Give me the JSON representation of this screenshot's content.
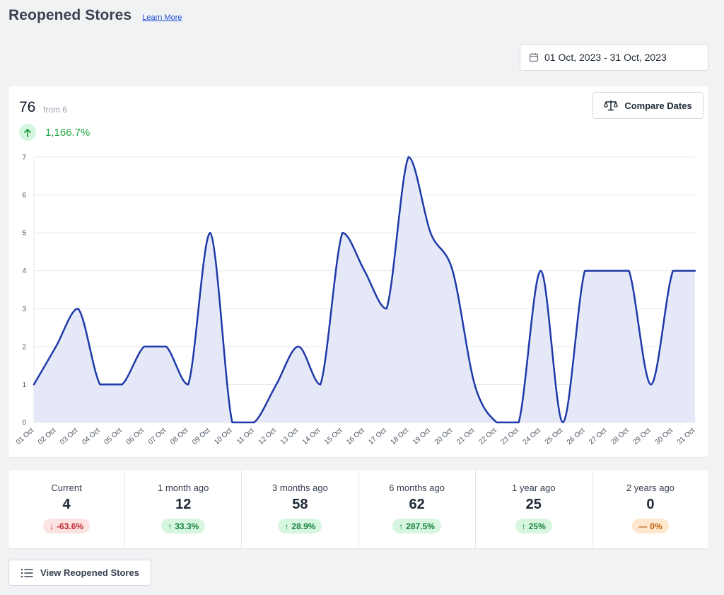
{
  "header": {
    "title": "Reopened Stores",
    "learn_more": "Learn More"
  },
  "date_range": {
    "label": "01 Oct, 2023 - 31 Oct, 2023",
    "icon": "calendar-icon"
  },
  "stats": {
    "value": "76",
    "from": "from 6",
    "change": "1,166.7%",
    "change_icon": "arrow-up-icon"
  },
  "compare_button": {
    "label": "Compare Dates",
    "icon": "scale-icon"
  },
  "chart_data": {
    "type": "area",
    "title": "",
    "xlabel": "",
    "ylabel": "",
    "categories": [
      "01 Oct",
      "02 Oct",
      "03 Oct",
      "04 Oct",
      "05 Oct",
      "06 Oct",
      "07 Oct",
      "08 Oct",
      "09 Oct",
      "10 Oct",
      "11 Oct",
      "12 Oct",
      "13 Oct",
      "14 Oct",
      "15 Oct",
      "16 Oct",
      "17 Oct",
      "18 Oct",
      "19 Oct",
      "20 Oct",
      "21 Oct",
      "22 Oct",
      "23 Oct",
      "24 Oct",
      "25 Oct",
      "26 Oct",
      "27 Oct",
      "28 Oct",
      "29 Oct",
      "30 Oct",
      "31 Oct"
    ],
    "series": [
      {
        "values": [
          1,
          2,
          3,
          1,
          1,
          2,
          2,
          1,
          5,
          0,
          0,
          1,
          2,
          1,
          5,
          4,
          3,
          7,
          5,
          4,
          1,
          0,
          0,
          4,
          0,
          4,
          4,
          4,
          1,
          4,
          4
        ]
      }
    ],
    "ylim": [
      0,
      7
    ],
    "yticks": [
      0,
      1,
      2,
      3,
      4,
      5,
      6,
      7
    ],
    "grid": true,
    "legend": "none",
    "line_color": "#1e3aa8",
    "fill_color": "#e4e8f7",
    "smooth": true
  },
  "summary": [
    {
      "label": "Current",
      "value": "4",
      "change": "-63.6%",
      "trend": "down"
    },
    {
      "label": "1 month ago",
      "value": "12",
      "change": "33.3%",
      "trend": "up"
    },
    {
      "label": "3 months ago",
      "value": "58",
      "change": "28.9%",
      "trend": "up"
    },
    {
      "label": "6 months ago",
      "value": "62",
      "change": "287.5%",
      "trend": "up"
    },
    {
      "label": "1 year ago",
      "value": "25",
      "change": "25%",
      "trend": "up"
    },
    {
      "label": "2 years ago",
      "value": "0",
      "change": "0%",
      "trend": "neutral"
    }
  ],
  "view_button": {
    "label": "View Reopened Stores",
    "icon": "list-icon"
  },
  "colors": {
    "accent": "#1e3aa8",
    "positive": "#22a845",
    "negative": "#c0262d",
    "neutral": "#c2600a"
  }
}
